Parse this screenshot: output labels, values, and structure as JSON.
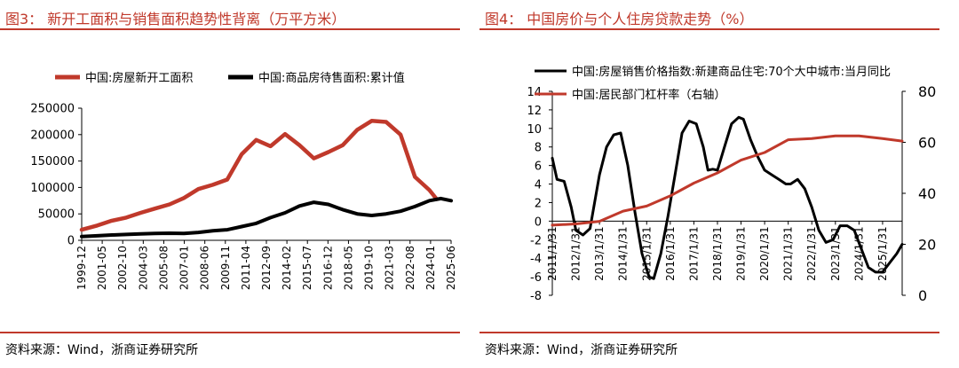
{
  "panels": [
    {
      "title": "图3：  新开工面积与销售面积趋势性背离（万平方米）",
      "source": "资料来源：Wind，浙商证券研究所"
    },
    {
      "title": "图4：  中国房价与个人住房贷款走势（%）",
      "source": "资料来源：Wind，浙商证券研究所"
    }
  ],
  "chart_data": [
    {
      "type": "line",
      "title": "新开工面积与销售面积趋势性背离（万平方米）",
      "xlabel": "",
      "ylabel": "",
      "ylim": [
        0,
        250000
      ],
      "yticks": [
        "0",
        "50000",
        "100000",
        "150000",
        "200000",
        "250000"
      ],
      "xlim": [
        1999.92,
        2025.5
      ],
      "xtick_labels": [
        "1999-12",
        "2001-05",
        "2002-10",
        "2004-03",
        "2005-08",
        "2007-01",
        "2008-06",
        "2009-11",
        "2011-04",
        "2012-09",
        "2014-02",
        "2015-07",
        "2016-12",
        "2018-05",
        "2019-10",
        "2021-03",
        "2022-08",
        "2024-01",
        "2025-06"
      ],
      "legend_position": "top",
      "series": [
        {
          "name": "中国:房屋新开工面积",
          "color": "#c0392b",
          "points": [
            [
              1999.92,
              20000
            ],
            [
              2001,
              28000
            ],
            [
              2002,
              37000
            ],
            [
              2003,
              43000
            ],
            [
              2004,
              52000
            ],
            [
              2005,
              60000
            ],
            [
              2006,
              68000
            ],
            [
              2007,
              80000
            ],
            [
              2008,
              97000
            ],
            [
              2009,
              105000
            ],
            [
              2010,
              115000
            ],
            [
              2011,
              163000
            ],
            [
              2012,
              190000
            ],
            [
              2013,
              178000
            ],
            [
              2014,
              201000
            ],
            [
              2015,
              180000
            ],
            [
              2016,
              155000
            ],
            [
              2017,
              167000
            ],
            [
              2018,
              180000
            ],
            [
              2019,
              209000
            ],
            [
              2020,
              226000
            ],
            [
              2021,
              224000
            ],
            [
              2022,
              200000
            ],
            [
              2023,
              120000
            ],
            [
              2024,
              95000
            ],
            [
              2024.5,
              78000
            ]
          ]
        },
        {
          "name": "中国:商品房待售面积:累计值",
          "color": "#000000",
          "points": [
            [
              1999.92,
              7000
            ],
            [
              2001,
              8500
            ],
            [
              2002,
              10000
            ],
            [
              2003,
              11000
            ],
            [
              2004,
              12000
            ],
            [
              2005,
              13000
            ],
            [
              2006,
              13500
            ],
            [
              2007,
              13000
            ],
            [
              2008,
              15000
            ],
            [
              2009,
              18000
            ],
            [
              2010,
              20000
            ],
            [
              2011,
              26000
            ],
            [
              2012,
              32000
            ],
            [
              2013,
              43000
            ],
            [
              2014,
              52000
            ],
            [
              2015,
              65000
            ],
            [
              2016,
              72000
            ],
            [
              2017,
              68000
            ],
            [
              2018,
              58000
            ],
            [
              2019,
              50000
            ],
            [
              2020,
              47000
            ],
            [
              2021,
              50000
            ],
            [
              2022,
              55000
            ],
            [
              2023,
              64000
            ],
            [
              2024,
              75000
            ],
            [
              2024.8,
              79000
            ],
            [
              2025.5,
              75000
            ]
          ]
        }
      ]
    },
    {
      "type": "line",
      "title": "中国房价与个人住房贷款走势（%）",
      "xlabel": "",
      "ylabel": "",
      "ylim_left": [
        -8,
        14
      ],
      "yticks_left": [
        "-8",
        "-6",
        "-4",
        "-2",
        "0",
        "2",
        "4",
        "6",
        "8",
        "10",
        "12",
        "14"
      ],
      "ylim_right": [
        0,
        80
      ],
      "yticks_right": [
        "0",
        "20",
        "40",
        "60",
        "80"
      ],
      "xlim": [
        2011.0,
        2025.83
      ],
      "xtick_labels": [
        "2011/1/31",
        "2012/1/31",
        "2013/1/31",
        "2014/1/31",
        "2015/1/31",
        "2016/1/31",
        "2017/1/31",
        "2018/1/31",
        "2019/1/31",
        "2020/1/31",
        "2021/1/31",
        "2022/1/31",
        "2023/1/31",
        "2024/1/31",
        "2025/1/31"
      ],
      "legend_position": "top-left",
      "series": [
        {
          "name": "中国:房屋销售价格指数:新建商品住宅:70个大中城市:当月同比",
          "axis": "left",
          "color": "#000000",
          "points": [
            [
              2011.0,
              6.8
            ],
            [
              2011.2,
              4.5
            ],
            [
              2011.5,
              4.3
            ],
            [
              2011.8,
              1.5
            ],
            [
              2012.0,
              -1.0
            ],
            [
              2012.3,
              -1.5
            ],
            [
              2012.6,
              -0.8
            ],
            [
              2013.0,
              5.0
            ],
            [
              2013.3,
              8.0
            ],
            [
              2013.6,
              9.3
            ],
            [
              2013.9,
              9.5
            ],
            [
              2014.2,
              6.0
            ],
            [
              2014.5,
              1.0
            ],
            [
              2014.8,
              -3.5
            ],
            [
              2015.1,
              -6.0
            ],
            [
              2015.3,
              -6.2
            ],
            [
              2015.6,
              -3.5
            ],
            [
              2015.9,
              0.5
            ],
            [
              2016.2,
              5.0
            ],
            [
              2016.5,
              9.5
            ],
            [
              2016.8,
              10.8
            ],
            [
              2017.1,
              10.5
            ],
            [
              2017.4,
              8.0
            ],
            [
              2017.6,
              5.5
            ],
            [
              2017.8,
              5.6
            ],
            [
              2018.0,
              5.5
            ],
            [
              2018.3,
              8.0
            ],
            [
              2018.6,
              10.5
            ],
            [
              2018.9,
              11.2
            ],
            [
              2019.1,
              11.0
            ],
            [
              2019.4,
              8.8
            ],
            [
              2019.7,
              7.0
            ],
            [
              2020.0,
              5.5
            ],
            [
              2020.3,
              5.0
            ],
            [
              2020.6,
              4.5
            ],
            [
              2020.9,
              4.0
            ],
            [
              2021.1,
              4.0
            ],
            [
              2021.4,
              4.5
            ],
            [
              2021.7,
              3.5
            ],
            [
              2022.0,
              1.5
            ],
            [
              2022.3,
              -1.0
            ],
            [
              2022.6,
              -2.3
            ],
            [
              2022.9,
              -2.0
            ],
            [
              2023.2,
              -0.5
            ],
            [
              2023.5,
              -0.5
            ],
            [
              2023.8,
              -1.0
            ],
            [
              2024.1,
              -3.0
            ],
            [
              2024.4,
              -5.0
            ],
            [
              2024.7,
              -5.5
            ],
            [
              2025.0,
              -5.5
            ],
            [
              2025.3,
              -4.5
            ],
            [
              2025.6,
              -3.5
            ],
            [
              2025.83,
              -2.5
            ]
          ]
        },
        {
          "name": "中国:居民部门杠杆率（右轴）",
          "axis": "right",
          "color": "#c0392b",
          "points": [
            [
              2011.0,
              27.5
            ],
            [
              2012.0,
              28.0
            ],
            [
              2013.0,
              29.0
            ],
            [
              2014.0,
              33.0
            ],
            [
              2015.0,
              35.0
            ],
            [
              2016.0,
              39.0
            ],
            [
              2017.0,
              44.0
            ],
            [
              2018.0,
              48.0
            ],
            [
              2019.0,
              53.0
            ],
            [
              2020.0,
              56.0
            ],
            [
              2021.0,
              61.0
            ],
            [
              2022.0,
              61.5
            ],
            [
              2023.0,
              62.5
            ],
            [
              2024.0,
              62.5
            ],
            [
              2025.0,
              61.5
            ],
            [
              2025.83,
              60.5
            ]
          ]
        }
      ]
    }
  ]
}
